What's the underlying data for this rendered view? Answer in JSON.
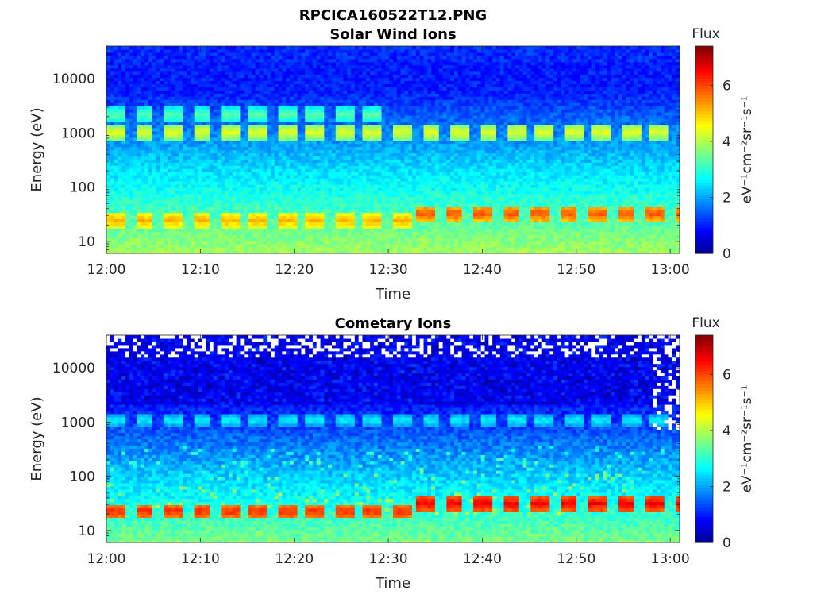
{
  "figure": {
    "title": "RPCICA160522T12.PNG"
  },
  "chart_data": [
    {
      "type": "heatmap",
      "title": "Solar Wind Ions",
      "xlabel": "Time",
      "ylabel": "Energy (eV)",
      "x_ticks": [
        "12:00",
        "12:10",
        "12:20",
        "12:30",
        "12:40",
        "12:50",
        "13:00"
      ],
      "xlim": [
        "12:00",
        "13:01"
      ],
      "y_scale": "log",
      "y_ticks": [
        10,
        100,
        1000,
        10000
      ],
      "y_tick_labels": [
        "10",
        "100",
        "1000",
        "10000"
      ],
      "ylim": [
        6,
        40000
      ],
      "colorbar": {
        "title": "Flux",
        "label": "eV⁻¹cm⁻²sr⁻¹s⁻¹",
        "range": [
          0,
          7.4
        ],
        "ticks": [
          0,
          2,
          4,
          6
        ],
        "tick_labels": [
          "0",
          "2",
          "4",
          "6"
        ],
        "colormap": "jet"
      },
      "colormap_stops": [
        "#00008f",
        "#0000ff",
        "#00ffff",
        "#ffff00",
        "#ff0000",
        "#800000"
      ],
      "features": [
        {
          "desc": "pulsed proton band",
          "time_range": [
            "12:00",
            "12:33"
          ],
          "energy_eV": 25,
          "flux": 5.2
        },
        {
          "desc": "pulsed proton band",
          "time_range": [
            "12:33",
            "13:01"
          ],
          "energy_eV": 33,
          "flux": 5.9
        },
        {
          "desc": "alpha band",
          "time_range": [
            "12:00",
            "13:01"
          ],
          "energy_eV": 1050,
          "flux": 4.4
        },
        {
          "desc": "secondary band",
          "time_range": [
            "12:00",
            "12:30"
          ],
          "energy_eV": 2200,
          "flux": 3.4
        }
      ]
    },
    {
      "type": "heatmap",
      "title": "Cometary Ions",
      "xlabel": "Time",
      "ylabel": "Energy (eV)",
      "x_ticks": [
        "12:00",
        "12:10",
        "12:20",
        "12:30",
        "12:40",
        "12:50",
        "13:00"
      ],
      "xlim": [
        "12:00",
        "13:01"
      ],
      "y_scale": "log",
      "y_ticks": [
        10,
        100,
        1000,
        10000
      ],
      "y_tick_labels": [
        "10",
        "100",
        "1000",
        "10000"
      ],
      "ylim": [
        6,
        40000
      ],
      "colorbar": {
        "title": "Flux",
        "label": "eV⁻¹cm⁻²sr⁻¹s⁻¹",
        "range": [
          0,
          7.4
        ],
        "ticks": [
          0,
          2,
          4,
          6
        ],
        "tick_labels": [
          "0",
          "2",
          "4",
          "6"
        ],
        "colormap": "jet"
      },
      "colormap_stops": [
        "#00008f",
        "#0000ff",
        "#00ffff",
        "#ffff00",
        "#ff0000",
        "#800000"
      ],
      "features": [
        {
          "desc": "pulsed low-energy band",
          "time_range": [
            "12:00",
            "12:33"
          ],
          "energy_eV": 23,
          "flux": 6.2
        },
        {
          "desc": "pulsed low-energy band",
          "time_range": [
            "12:33",
            "13:01"
          ],
          "energy_eV": 32,
          "flux": 6.6
        },
        {
          "desc": "band",
          "time_range": [
            "12:00",
            "13:01"
          ],
          "energy_eV": 1100,
          "flux": 2.6
        },
        {
          "desc": "no counts (white)",
          "time_range": [
            "12:00",
            "13:01"
          ],
          "energy_range_eV": [
            15000,
            40000
          ],
          "flux": null
        }
      ]
    }
  ]
}
